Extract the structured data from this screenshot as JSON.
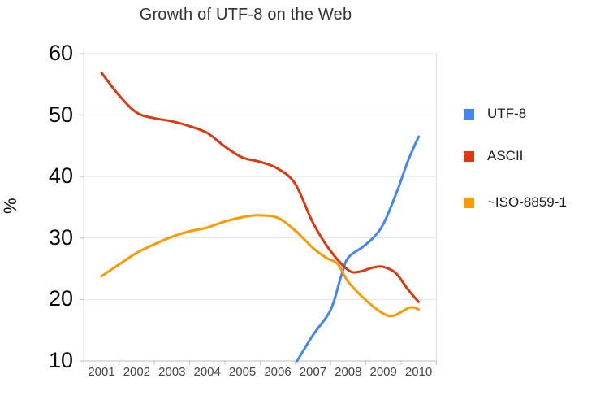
{
  "title": "Growth of UTF-8 on the Web",
  "colors": {
    "utf8": "#4285f4",
    "ascii": "#dc3912",
    "iso_8859_1": "#ff9900",
    "gridline": "#e6e6e6",
    "axis_line": "#bdbdbd",
    "right_border": "#e0e0e0",
    "title_text": "#333333",
    "y_tick_text": "#0a0a0a",
    "x_tick_text": "#454545",
    "legend_text": "#1c1c1c"
  },
  "legend": {
    "position": "right",
    "items": [
      {
        "label": "UTF-8",
        "color": "#4285f4"
      },
      {
        "label": "ASCII",
        "color": "#dc3912"
      },
      {
        "label": "~ISO-8859-1",
        "color": "#ff9900"
      }
    ]
  },
  "chart_data": {
    "type": "line",
    "title": "Growth of UTF-8 on the Web",
    "xlabel": "",
    "ylabel": "%",
    "xlim": [
      2000.5,
      2010.5
    ],
    "ylim": [
      10,
      60
    ],
    "y_ticks": [
      60,
      50,
      40,
      30,
      20,
      10
    ],
    "x_ticks": [
      "2001",
      "2002",
      "2003",
      "2004",
      "2005",
      "2006",
      "2007",
      "2008",
      "2009",
      "2010"
    ],
    "grid": "horizontal",
    "smooth": true,
    "legend_position": "right",
    "series": [
      {
        "name": "UTF-8",
        "color": "#4285f4",
        "points": [
          [
            2006.55,
            10
          ],
          [
            2007,
            14.2
          ],
          [
            2007.5,
            18.3
          ],
          [
            2007.8,
            23.8
          ],
          [
            2008,
            26.8
          ],
          [
            2008.4,
            28.5
          ],
          [
            2008.7,
            30.0
          ],
          [
            2009,
            32.3
          ],
          [
            2009.4,
            37.8
          ],
          [
            2009.7,
            42.6
          ],
          [
            2010,
            46.5
          ]
        ]
      },
      {
        "name": "ASCII",
        "color": "#dc3912",
        "points": [
          [
            2001,
            56.9
          ],
          [
            2001.5,
            53.2
          ],
          [
            2002,
            50.4
          ],
          [
            2002.5,
            49.5
          ],
          [
            2003,
            49.0
          ],
          [
            2003.5,
            48.2
          ],
          [
            2004,
            47.1
          ],
          [
            2004.5,
            44.9
          ],
          [
            2005,
            43.1
          ],
          [
            2005.5,
            42.4
          ],
          [
            2006,
            41.3
          ],
          [
            2006.5,
            38.8
          ],
          [
            2007,
            32.5
          ],
          [
            2007.5,
            27.9
          ],
          [
            2008,
            24.8
          ],
          [
            2008.3,
            24.5
          ],
          [
            2008.7,
            25.2
          ],
          [
            2009,
            25.3
          ],
          [
            2009.35,
            24.3
          ],
          [
            2009.7,
            21.6
          ],
          [
            2010,
            19.6
          ]
        ]
      },
      {
        "name": "~ISO-8859-1",
        "color": "#ff9900",
        "points": [
          [
            2001,
            23.8
          ],
          [
            2001.5,
            25.7
          ],
          [
            2002,
            27.6
          ],
          [
            2002.5,
            29.0
          ],
          [
            2003,
            30.2
          ],
          [
            2003.5,
            31.1
          ],
          [
            2004,
            31.7
          ],
          [
            2004.5,
            32.7
          ],
          [
            2005,
            33.4
          ],
          [
            2005.45,
            33.7
          ],
          [
            2006,
            33.3
          ],
          [
            2006.5,
            31.2
          ],
          [
            2007,
            28.4
          ],
          [
            2007.4,
            26.7
          ],
          [
            2007.7,
            25.8
          ],
          [
            2008,
            22.9
          ],
          [
            2008.5,
            19.9
          ],
          [
            2009,
            17.7
          ],
          [
            2009.3,
            17.4
          ],
          [
            2009.75,
            18.7
          ],
          [
            2010,
            18.4
          ]
        ]
      }
    ]
  }
}
